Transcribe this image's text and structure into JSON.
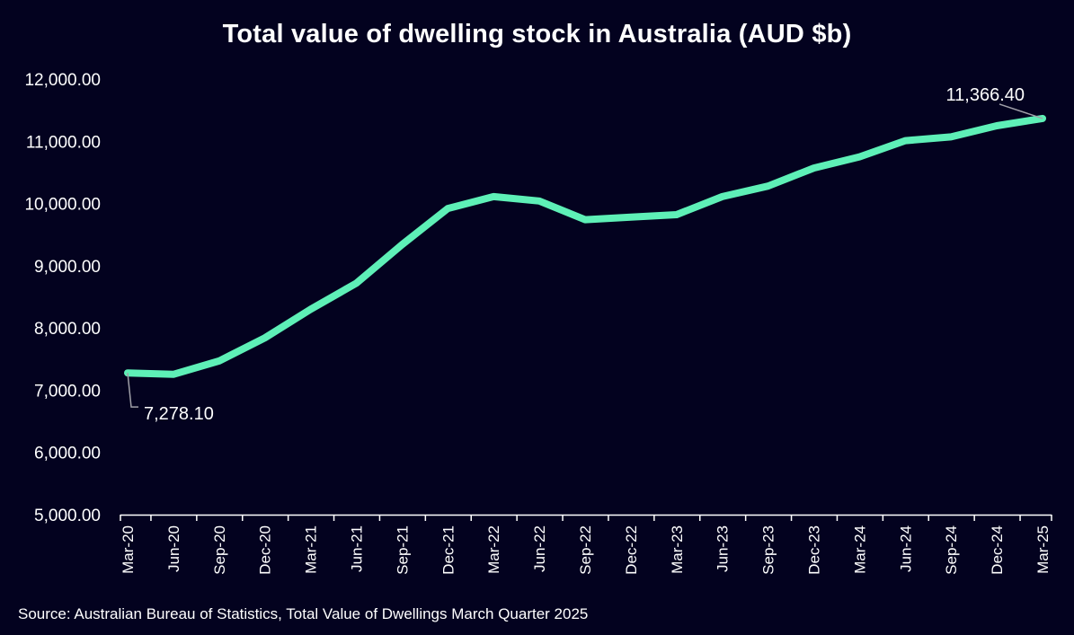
{
  "chart_data": {
    "type": "line",
    "title": "Total value of dwelling stock in Australia (AUD $b)",
    "xlabel": "",
    "ylabel": "",
    "categories": [
      "Mar-20",
      "Jun-20",
      "Sep-20",
      "Dec-20",
      "Mar-21",
      "Jun-21",
      "Sep-21",
      "Dec-21",
      "Mar-22",
      "Jun-22",
      "Sep-22",
      "Dec-22",
      "Mar-23",
      "Jun-23",
      "Sep-23",
      "Dec-23",
      "Mar-24",
      "Jun-24",
      "Sep-24",
      "Dec-24",
      "Mar-25"
    ],
    "series": [
      {
        "values": [
          7278.1,
          7255,
          7470,
          7840,
          8300,
          8720,
          9340,
          9920,
          10110,
          10040,
          9740,
          9780,
          9820,
          10110,
          10280,
          10570,
          10750,
          11010,
          11070,
          11250,
          11366.4
        ]
      }
    ],
    "ylim": [
      5000,
      12000
    ],
    "yticks": [
      "5,000.00",
      "6,000.00",
      "7,000.00",
      "8,000.00",
      "9,000.00",
      "10,000.00",
      "11,000.00",
      "12,000.00"
    ],
    "grid": false,
    "line_color": "#5ef0b7",
    "annotations": [
      {
        "index": 0,
        "text": "7,278.10"
      },
      {
        "index": 20,
        "text": "11,366.40"
      }
    ]
  },
  "source": "Source: Australian Bureau of Statistics, Total Value of Dwellings March Quarter 2025",
  "colors": {
    "background": "#03021f",
    "text": "#ffffff",
    "axis": "#ffffff",
    "leader": "#a0a0a8"
  }
}
